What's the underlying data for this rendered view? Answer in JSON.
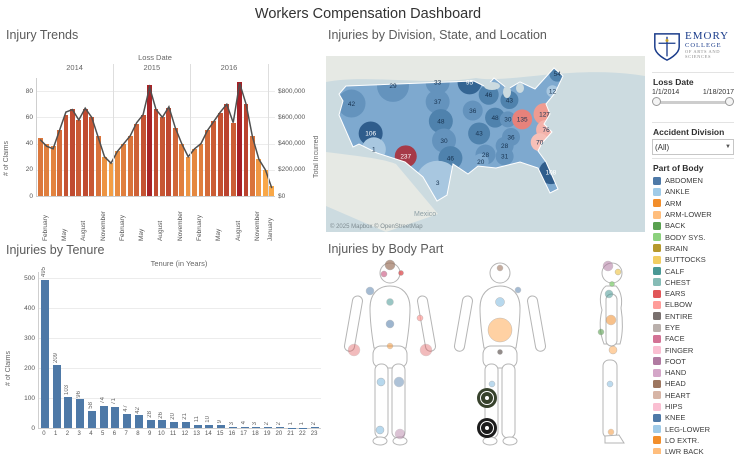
{
  "dashboard": {
    "title": "Workers Compensation Dashboard"
  },
  "chart_data": [
    {
      "id": "injury_trends",
      "type": "bar+line",
      "title": "Injury Trends",
      "x_header": "Loss Date",
      "years": [
        "2014",
        "2015",
        "2016"
      ],
      "months": [
        "January",
        "February",
        "March",
        "April",
        "May",
        "June",
        "July",
        "August",
        "September",
        "October",
        "November",
        "December"
      ],
      "x_tick_months": [
        1,
        4,
        7,
        10
      ],
      "last_tick_label": "January",
      "ylabel": "# of Claims",
      "y2label": "Total Incurred",
      "y_ticks": [
        0,
        20,
        40,
        60,
        80
      ],
      "ylim": [
        0,
        90
      ],
      "y2_ticks": [
        "$0",
        "$200,000",
        "$400,000",
        "$600,000",
        "$800,000"
      ],
      "y2lim": [
        0,
        900000
      ],
      "claims": [
        44,
        40,
        38,
        50,
        62,
        66,
        58,
        66,
        60,
        46,
        30,
        25,
        34,
        40,
        46,
        55,
        62,
        85,
        66,
        60,
        67,
        52,
        40,
        30,
        36,
        40,
        50,
        57,
        63,
        70,
        56,
        87,
        70,
        46,
        28,
        20,
        8
      ],
      "total_incurred": [
        430000,
        380000,
        360000,
        500000,
        640000,
        660000,
        580000,
        670000,
        600000,
        450000,
        300000,
        250000,
        340000,
        400000,
        460000,
        560000,
        620000,
        830000,
        660000,
        600000,
        680000,
        520000,
        400000,
        300000,
        360000,
        400000,
        500000,
        570000,
        640000,
        700000,
        560000,
        860000,
        700000,
        450000,
        280000,
        200000,
        60000
      ],
      "bar_color_low": "#F9A848",
      "bar_color_high": "#A62026",
      "line_color": "#4f4f4f"
    },
    {
      "id": "injuries_by_tenure",
      "type": "bar",
      "title": "Injuries by Tenure",
      "subtitle": "Tenure (in Years)",
      "ylabel": "# of Claims",
      "y_ticks": [
        0,
        100,
        200,
        300,
        400,
        500
      ],
      "ylim": [
        0,
        520
      ],
      "categories": [
        0,
        1,
        2,
        3,
        4,
        5,
        6,
        7,
        8,
        9,
        10,
        11,
        12,
        13,
        14,
        15,
        16,
        17,
        18,
        19,
        20,
        21,
        22,
        23
      ],
      "values": [
        495,
        209,
        103,
        96,
        58,
        74,
        71,
        47,
        42,
        28,
        26,
        20,
        21,
        11,
        10,
        9,
        3,
        4,
        3,
        2,
        2,
        1,
        1,
        2
      ],
      "bar_color": "#4E79A7"
    },
    {
      "id": "injuries_by_division_state_location",
      "type": "map",
      "title": "Injuries by Division, State, and Location",
      "attribution": "© 2025 Mapbox © OpenStreetMap",
      "other_label": "Mexico",
      "base_color": "#7ea9cf",
      "states": [
        {
          "value": 29,
          "x": 21,
          "y": 17,
          "color": "#6493bd",
          "r": 16
        },
        {
          "value": 42,
          "x": 8,
          "y": 27,
          "color": "#6493bd",
          "r": 14
        },
        {
          "value": 106,
          "x": 14,
          "y": 44,
          "color": "#2f5d8c",
          "r": 12,
          "tc": "#ffffff"
        },
        {
          "value": 1,
          "x": 15,
          "y": 53,
          "color": "#a8c7e0",
          "r": 12
        },
        {
          "value": 237,
          "x": 25,
          "y": 57,
          "color": "#a63a48",
          "r": 11,
          "tc": "#ffffff"
        },
        {
          "value": 33,
          "x": 35,
          "y": 15,
          "color": "#6493bd",
          "r": 12
        },
        {
          "value": 37,
          "x": 35,
          "y": 26,
          "color": "#6493bd",
          "r": 12
        },
        {
          "value": 48,
          "x": 36,
          "y": 37,
          "color": "#4f82ad",
          "r": 12
        },
        {
          "value": 30,
          "x": 37,
          "y": 48,
          "color": "#6493bd",
          "r": 12
        },
        {
          "value": 46,
          "x": 39,
          "y": 58,
          "color": "#4f82ad",
          "r": 12
        },
        {
          "value": 3,
          "x": 35,
          "y": 72,
          "color": "#a8c7e0",
          "r": 22
        },
        {
          "value": 95,
          "x": 45,
          "y": 15,
          "color": "#346593",
          "r": 12,
          "tc": "#ffffff"
        },
        {
          "value": 36,
          "x": 46,
          "y": 31,
          "color": "#6493bd",
          "r": 10
        },
        {
          "value": 43,
          "x": 48,
          "y": 44,
          "color": "#4f82ad",
          "r": 11
        },
        {
          "value": 28,
          "x": 50,
          "y": 56,
          "color": "#6493bd",
          "r": 10
        },
        {
          "value": 20,
          "x": 48.5,
          "y": 60,
          "color": "#7ea9cf",
          "r": 8
        },
        {
          "value": 46,
          "x": 51,
          "y": 22,
          "color": "#4f82ad",
          "r": 10
        },
        {
          "value": 48,
          "x": 53,
          "y": 35,
          "color": "#4f82ad",
          "r": 10
        },
        {
          "value": 30,
          "x": 57,
          "y": 36,
          "color": "#6493bd",
          "r": 8
        },
        {
          "value": 43,
          "x": 57.5,
          "y": 25,
          "color": "#4f82ad",
          "r": 9
        },
        {
          "value": 135,
          "x": 61.5,
          "y": 36,
          "color": "#e7827b",
          "r": 10
        },
        {
          "value": 36,
          "x": 58,
          "y": 46,
          "color": "#6493bd",
          "r": 9
        },
        {
          "value": 28,
          "x": 56,
          "y": 51,
          "color": "#6493bd",
          "r": 9
        },
        {
          "value": 31,
          "x": 56,
          "y": 57,
          "color": "#6493bd",
          "r": 9
        },
        {
          "value": 108,
          "x": 70.5,
          "y": 66,
          "color": "#2f5d8c",
          "r": 12,
          "tc": "#ffffff"
        },
        {
          "value": 127,
          "x": 68.5,
          "y": 33,
          "color": "#ef9b91",
          "r": 11
        },
        {
          "value": 76,
          "x": 69,
          "y": 42,
          "color": "#f4b3ab",
          "r": 10
        },
        {
          "value": 70,
          "x": 67,
          "y": 49,
          "color": "#f6c0b8",
          "r": 9
        },
        {
          "value": 54,
          "x": 72.5,
          "y": 10,
          "color": "#4f82ad",
          "r": 8
        },
        {
          "value": 12,
          "x": 71,
          "y": 20,
          "color": "#a8c7e0",
          "r": 6
        }
      ]
    },
    {
      "id": "injuries_by_body_part",
      "type": "anatomy",
      "title": "Injuries by Body Part",
      "figures": [
        "front",
        "front",
        "side"
      ],
      "marks": [
        {
          "figure": 0,
          "part": "head",
          "x": 50,
          "y": 5,
          "r": 5,
          "color": "#9D7660",
          "o": 0.7
        },
        {
          "figure": 0,
          "part": "face",
          "x": 44,
          "y": 14,
          "r": 3,
          "color": "#D37295",
          "o": 0.75
        },
        {
          "figure": 0,
          "part": "ears",
          "x": 61,
          "y": 13,
          "r": 2.5,
          "color": "#E15759",
          "o": 0.8
        },
        {
          "figure": 0,
          "part": "shoulder",
          "x": 30,
          "y": 31,
          "r": 4,
          "color": "#4E79A7",
          "o": 0.5
        },
        {
          "figure": 0,
          "part": "chest",
          "x": 50,
          "y": 42,
          "r": 3.5,
          "color": "#499894",
          "o": 0.55
        },
        {
          "figure": 0,
          "part": "abdomen",
          "x": 50,
          "y": 64,
          "r": 4,
          "color": "#4E79A7",
          "o": 0.55
        },
        {
          "figure": 0,
          "part": "elbow",
          "x": 80,
          "y": 58,
          "r": 3,
          "color": "#FF9D9A",
          "o": 0.7
        },
        {
          "figure": 0,
          "part": "hand",
          "x": 14,
          "y": 90,
          "r": 6,
          "color": "#E15759",
          "o": 0.4
        },
        {
          "figure": 0,
          "part": "hand",
          "x": 86,
          "y": 90,
          "r": 6,
          "color": "#E15759",
          "o": 0.4
        },
        {
          "figure": 0,
          "part": "hips",
          "x": 50,
          "y": 86,
          "r": 3,
          "color": "#F28E2B",
          "o": 0.5
        },
        {
          "figure": 0,
          "part": "knee",
          "x": 41,
          "y": 122,
          "r": 4,
          "color": "#A0CBE8",
          "o": 0.75
        },
        {
          "figure": 0,
          "part": "knee",
          "x": 59,
          "y": 122,
          "r": 5,
          "color": "#4E79A7",
          "o": 0.45
        },
        {
          "figure": 0,
          "part": "ankle",
          "x": 40,
          "y": 170,
          "r": 4,
          "color": "#A0CBE8",
          "o": 0.75
        },
        {
          "figure": 0,
          "part": "foot",
          "x": 60,
          "y": 174,
          "r": 5,
          "color": "#B07AA1",
          "o": 0.45
        },
        {
          "figure": 1,
          "part": "head",
          "x": 50,
          "y": 8,
          "r": 3,
          "color": "#9D7660",
          "o": 0.6
        },
        {
          "figure": 1,
          "part": "shoulder",
          "x": 68,
          "y": 30,
          "r": 3,
          "color": "#4E79A7",
          "o": 0.5
        },
        {
          "figure": 1,
          "part": "chest",
          "x": 50,
          "y": 42,
          "r": 4.5,
          "color": "#A0CBE8",
          "o": 0.75
        },
        {
          "figure": 1,
          "part": "abdomen",
          "x": 50,
          "y": 70,
          "r": 12,
          "color": "#FFBE7D",
          "o": 0.7
        },
        {
          "figure": 1,
          "part": "groin",
          "x": 50,
          "y": 92,
          "r": 2.5,
          "color": "#79706E",
          "o": 0.8
        },
        {
          "figure": 1,
          "part": "knee",
          "x": 42,
          "y": 124,
          "r": 3,
          "color": "#A0CBE8",
          "o": 0.7
        },
        {
          "figure": 1,
          "part": "foot",
          "x": 40,
          "y": 172,
          "r": 5,
          "color": "#A0CBE8",
          "o": 0.7
        },
        {
          "figure": 2,
          "part": "head",
          "x": 46,
          "y": 6,
          "r": 5,
          "color": "#B07AA1",
          "o": 0.55
        },
        {
          "figure": 2,
          "part": "head",
          "x": 56,
          "y": 12,
          "r": 3,
          "color": "#F1CE63",
          "o": 0.75
        },
        {
          "figure": 2,
          "part": "neck",
          "x": 50,
          "y": 24,
          "r": 2.5,
          "color": "#8CD17D",
          "o": 0.8
        },
        {
          "figure": 2,
          "part": "shoulder",
          "x": 47,
          "y": 34,
          "r": 4,
          "color": "#499894",
          "o": 0.55
        },
        {
          "figure": 2,
          "part": "elbow",
          "x": 49,
          "y": 60,
          "r": 5,
          "color": "#F28E2B",
          "o": 0.55
        },
        {
          "figure": 2,
          "part": "back",
          "x": 39,
          "y": 72,
          "r": 3,
          "color": "#59A14F",
          "o": 0.6
        },
        {
          "figure": 2,
          "part": "hand",
          "x": 51,
          "y": 90,
          "r": 4,
          "color": "#FFBE7D",
          "o": 0.7
        },
        {
          "figure": 2,
          "part": "knee",
          "x": 48,
          "y": 124,
          "r": 3,
          "color": "#A0CBE8",
          "o": 0.7
        },
        {
          "figure": 2,
          "part": "ankle",
          "x": 49,
          "y": 172,
          "r": 3,
          "color": "#F28E2B",
          "o": 0.5
        }
      ],
      "badges": [
        {
          "x": 163,
          "y": 140,
          "color": "#37422c"
        },
        {
          "x": 163,
          "y": 170,
          "color": "#1c1c1c"
        }
      ]
    }
  ],
  "sidebar": {
    "logo": {
      "line1": "EMORY",
      "line2": "COLLEGE",
      "line3": "OF ARTS AND",
      "line4": "SCIENCES"
    },
    "loss_date": {
      "label": "Loss Date",
      "start": "1/1/2014",
      "end": "1/18/2017"
    },
    "accident_division": {
      "label": "Accident Division",
      "value": "(All)"
    },
    "part_of_body": {
      "label": "Part of Body",
      "items": [
        {
          "label": "ABDOMEN",
          "color": "#4E79A7"
        },
        {
          "label": "ANKLE",
          "color": "#A0CBE8"
        },
        {
          "label": "ARM",
          "color": "#F28E2B"
        },
        {
          "label": "ARM-LOWER",
          "color": "#FFBE7D"
        },
        {
          "label": "BACK",
          "color": "#59A14F"
        },
        {
          "label": "BODY SYS.",
          "color": "#8CD17D"
        },
        {
          "label": "BRAIN",
          "color": "#B6992D"
        },
        {
          "label": "BUTTOCKS",
          "color": "#F1CE63"
        },
        {
          "label": "CALF",
          "color": "#499894"
        },
        {
          "label": "CHEST",
          "color": "#86BCB6"
        },
        {
          "label": "EARS",
          "color": "#E15759"
        },
        {
          "label": "ELBOW",
          "color": "#FF9D9A"
        },
        {
          "label": "ENTIRE",
          "color": "#79706E"
        },
        {
          "label": "EYE",
          "color": "#BAB0AC"
        },
        {
          "label": "FACE",
          "color": "#D37295"
        },
        {
          "label": "FINGER",
          "color": "#FABFD2"
        },
        {
          "label": "FOOT",
          "color": "#B07AA1"
        },
        {
          "label": "HAND",
          "color": "#D4A6C8"
        },
        {
          "label": "HEAD",
          "color": "#9D7660"
        },
        {
          "label": "HEART",
          "color": "#D7B5A6"
        },
        {
          "label": "HIPS",
          "color": "#FABFD2"
        },
        {
          "label": "KNEE",
          "color": "#4E79A7"
        },
        {
          "label": "LEG-LOWER",
          "color": "#A0CBE8"
        },
        {
          "label": "LO EXTR.",
          "color": "#F28E2B"
        },
        {
          "label": "LWR BACK",
          "color": "#FFBE7D"
        }
      ]
    }
  }
}
